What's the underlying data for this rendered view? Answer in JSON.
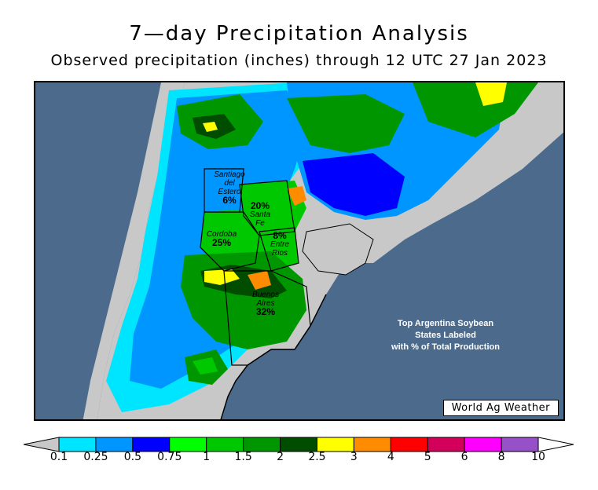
{
  "title": "7—day Precipitation Analysis",
  "subtitle": "Observed precipitation (inches) through 12 UTC 27 Jan 2023",
  "states": [
    {
      "name": "Santiago del Estero",
      "pct": "6%"
    },
    {
      "name": "Santa Fe",
      "pct": "20%"
    },
    {
      "name": "Cordoba",
      "pct": "25%"
    },
    {
      "name": "Entre Rios",
      "pct": "8%"
    },
    {
      "name": "Buenos Aires",
      "pct": "32%"
    }
  ],
  "state_lines": {
    "santiago": [
      "Santiago",
      "del",
      "Estero"
    ],
    "santafe": [
      "Santa",
      "Fe"
    ],
    "entrerios": [
      "Entre",
      "Rios"
    ],
    "buenosaires": [
      "Buenos",
      "Aires"
    ]
  },
  "note": [
    "Top Argentina Soybean",
    "States Labeled",
    "with % of Total Production"
  ],
  "credit": "World Ag Weather",
  "legend": {
    "units": "inches",
    "labels": [
      "0.1",
      "0.25",
      "0.5",
      "0.75",
      "1",
      "1.5",
      "2",
      "2.5",
      "3",
      "4",
      "5",
      "6",
      "8",
      "10"
    ],
    "colors": [
      "#00e5ff",
      "#0096ff",
      "#0000ff",
      "#00ff00",
      "#00c800",
      "#009600",
      "#004d00",
      "#ffff00",
      "#ff8c00",
      "#ff0000",
      "#d2005a",
      "#ff00ff",
      "#9650c8"
    ],
    "below_color": "#c8c8c8",
    "above_color": "#ffffff"
  },
  "map_colors": {
    "ocean": "#4b6a8c",
    "land_dry": "#c8c8c8"
  }
}
